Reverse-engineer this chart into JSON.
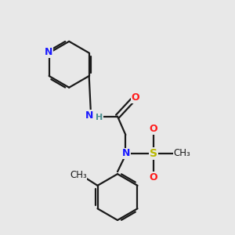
{
  "background_color": "#e8e8e8",
  "bond_color": "#1a1a1a",
  "nitrogen_color": "#1a1aff",
  "oxygen_color": "#ff1a1a",
  "sulfur_color": "#b8b800",
  "h_color": "#4a9090",
  "figsize": [
    3.0,
    3.0
  ],
  "dpi": 100,
  "xlim": [
    0,
    10
  ],
  "ylim": [
    0,
    10
  ]
}
